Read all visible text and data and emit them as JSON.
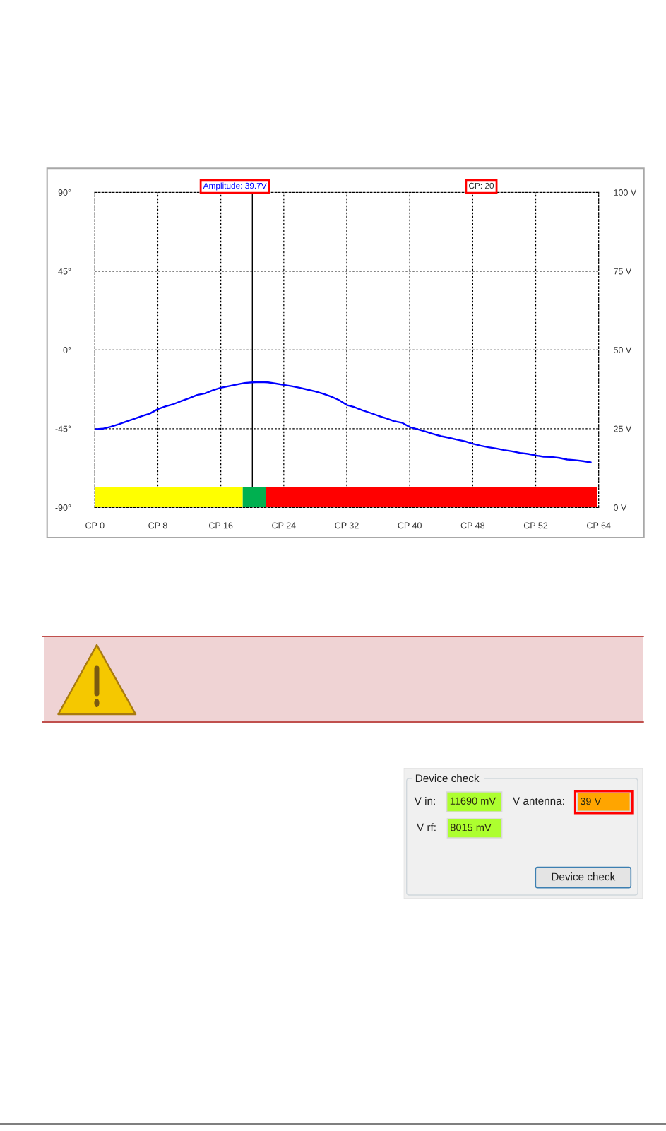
{
  "chart_data": [
    {
      "type": "line",
      "categories": [
        "CP 0",
        null,
        null,
        null,
        null,
        null,
        null,
        null,
        "CP 8",
        null,
        null,
        null,
        null,
        null,
        null,
        null,
        "CP 16",
        null,
        null,
        null,
        null,
        null,
        null,
        null,
        "CP 24",
        null,
        null,
        null,
        null,
        null,
        null,
        null,
        "CP 32",
        null,
        null,
        null,
        null,
        null,
        null,
        null,
        "CP 40",
        null,
        null,
        null,
        null,
        null,
        null,
        null,
        "CP 48",
        null,
        null,
        null,
        null,
        null,
        null,
        null,
        "CP 52",
        null,
        null,
        null,
        null,
        null,
        null,
        null,
        "CP 64"
      ],
      "series": [
        {
          "color": "#0000ff",
          "axis": "y2",
          "values": [
            24.8,
            25.0,
            25.6,
            26.4,
            27.3,
            28.1,
            29.0,
            29.8,
            31.2,
            32.1,
            32.8,
            33.8,
            34.7,
            35.7,
            36.2,
            37.2,
            38.0,
            38.5,
            39.0,
            39.5,
            39.7,
            39.8,
            39.7,
            39.3,
            38.9,
            38.5,
            38.0,
            37.4,
            36.8,
            36.1,
            35.2,
            34.1,
            32.5,
            31.8,
            30.8,
            30.0,
            29.1,
            28.3,
            27.4,
            26.9,
            25.5,
            24.8,
            24.1,
            23.3,
            22.6,
            22.1,
            21.5,
            21.0,
            20.2,
            19.6,
            19.1,
            18.7,
            18.2,
            17.8,
            17.3,
            17.0,
            16.5,
            16.1,
            16.0,
            15.7,
            15.2,
            15.0,
            14.7,
            14.3,
            null
          ]
        }
      ],
      "ylim": [
        -90,
        90
      ],
      "yticks": [
        {
          "value": -90,
          "label": "-90°"
        },
        {
          "value": -45,
          "label": "-45°"
        },
        {
          "value": 0,
          "label": "0°"
        },
        {
          "value": 45,
          "label": "45°"
        },
        {
          "value": 90,
          "label": "90°"
        }
      ],
      "y2lim": [
        0,
        100
      ],
      "y2ticks": [
        {
          "value": 0,
          "label": "0 V"
        },
        {
          "value": 25,
          "label": "25 V"
        },
        {
          "value": 50,
          "label": "50 V"
        },
        {
          "value": 75,
          "label": "75 V"
        },
        {
          "value": 100,
          "label": "100 V"
        }
      ],
      "grid": true,
      "annotations": [
        "Amplitude: 39.7V",
        "CP: 20"
      ]
    },
    {
      "type": "other",
      "title": "Device check",
      "annotations": [
        "V in:",
        "11690 mV",
        "V antenna:",
        "39 V",
        "V rf:",
        "8015 mV",
        "Device check"
      ]
    }
  ]
}
